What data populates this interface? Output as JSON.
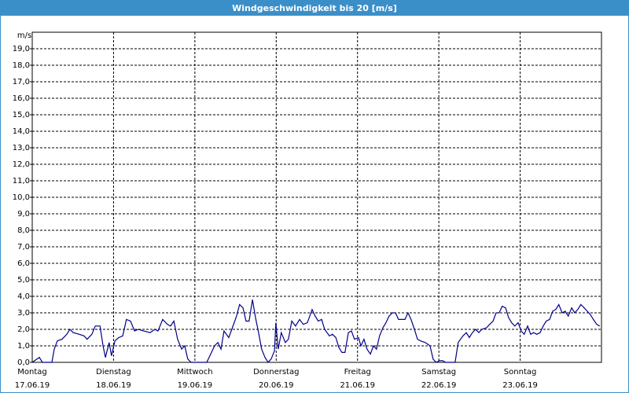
{
  "chart_data": {
    "type": "line",
    "title": "Windgeschwindigkeit bis 20 [m/s]",
    "y_label": "m/s",
    "color": "#00008b",
    "grid": true,
    "xlim": [
      0,
      168
    ],
    "ylim": [
      0,
      20
    ],
    "xticks": [
      {
        "value": 0,
        "label": "Montag"
      },
      {
        "value": 24,
        "label": "Dienstag"
      },
      {
        "value": 48,
        "label": "Mittwoch"
      },
      {
        "value": 72,
        "label": "Donnerstag"
      },
      {
        "value": 96,
        "label": "Freitag"
      },
      {
        "value": 120,
        "label": "Samstag"
      },
      {
        "value": 144,
        "label": "Sonntag"
      }
    ],
    "xtick_dates": [
      "17.06.19",
      "18.06.19",
      "19.06.19",
      "20.06.19",
      "21.06.19",
      "22.06.19",
      "23.06.19"
    ],
    "yticks": [
      {
        "value": 0,
        "label": "0,0"
      },
      {
        "value": 1,
        "label": "1,0"
      },
      {
        "value": 2,
        "label": "2,0"
      },
      {
        "value": 3,
        "label": "3,0"
      },
      {
        "value": 4,
        "label": "4,0"
      },
      {
        "value": 5,
        "label": "5,0"
      },
      {
        "value": 6,
        "label": "6,0"
      },
      {
        "value": 7,
        "label": "7,0"
      },
      {
        "value": 8,
        "label": "8,0"
      },
      {
        "value": 9,
        "label": "9,0"
      },
      {
        "value": 10,
        "label": "10,0"
      },
      {
        "value": 11,
        "label": "11,0"
      },
      {
        "value": 12,
        "label": "12,0"
      },
      {
        "value": 13,
        "label": "13,0"
      },
      {
        "value": 14,
        "label": "14,0"
      },
      {
        "value": 15,
        "label": "15,0"
      },
      {
        "value": 16,
        "label": "16,0"
      },
      {
        "value": 17,
        "label": "17,0"
      },
      {
        "value": 18,
        "label": "18,0"
      },
      {
        "value": 19,
        "label": "19,0"
      }
    ],
    "x": [
      0,
      1.4,
      2.1,
      3.0,
      5.8,
      6.5,
      7.4,
      8.8,
      10.2,
      11.1,
      12.1,
      13.9,
      15.3,
      16.2,
      17.6,
      18.6,
      20.0,
      20.9,
      21.6,
      22.7,
      23.4,
      24.4,
      25.5,
      26.7,
      27.8,
      29.0,
      30.2,
      31.3,
      32.9,
      34.8,
      36.2,
      37.1,
      38.5,
      39.9,
      40.8,
      41.8,
      42.9,
      44.1,
      45.0,
      45.9,
      46.9,
      48.7,
      51.5,
      52.9,
      53.8,
      54.8,
      55.7,
      56.6,
      58.0,
      58.9,
      60.3,
      61.2,
      62.2,
      63.1,
      64.0,
      65.0,
      65.9,
      66.8,
      67.7,
      68.7,
      69.6,
      70.5,
      71.5,
      71.9,
      72.6,
      73.5,
      74.7,
      75.6,
      76.6,
      77.7,
      78.9,
      80.0,
      81.2,
      82.6,
      83.5,
      84.4,
      85.4,
      86.3,
      87.7,
      88.6,
      89.6,
      90.5,
      91.4,
      92.3,
      93.3,
      94.2,
      95.1,
      96.3,
      97.0,
      97.9,
      98.8,
      99.8,
      100.7,
      101.6,
      102.5,
      103.5,
      104.4,
      105.3,
      106.3,
      107.2,
      108.1,
      109.0,
      110.0,
      110.9,
      111.8,
      112.8,
      113.7,
      114.6,
      116.0,
      117.4,
      118.3,
      119.2,
      120.2,
      121.1,
      122.0,
      124.1,
      124.8,
      125.7,
      127.1,
      128.1,
      129.0,
      129.9,
      130.8,
      131.8,
      132.7,
      134.1,
      135.0,
      136.0,
      136.9,
      137.8,
      138.7,
      139.7,
      140.6,
      141.5,
      142.4,
      143.4,
      144.3,
      145.2,
      146.2,
      147.1,
      148.0,
      148.9,
      149.9,
      150.8,
      151.7,
      152.7,
      153.6,
      154.5,
      155.4,
      156.4,
      157.3,
      158.2,
      159.2,
      160.1,
      161.0,
      161.9,
      162.9,
      163.8,
      164.7,
      165.6,
      166.6,
      167.5
    ],
    "values": [
      0,
      0.2,
      0.3,
      0,
      0,
      0.8,
      1.3,
      1.4,
      1.7,
      2.0,
      1.8,
      1.7,
      1.6,
      1.4,
      1.7,
      2.2,
      2.2,
      1.0,
      0.3,
      1.2,
      0.4,
      1.3,
      1.5,
      1.6,
      2.6,
      2.5,
      1.9,
      2.0,
      1.9,
      1.8,
      2.0,
      1.9,
      2.6,
      2.3,
      2.2,
      2.5,
      1.4,
      0.8,
      1.0,
      0.2,
      0,
      0,
      0,
      0.6,
      1.0,
      1.2,
      0.8,
      1.9,
      1.5,
      2.0,
      2.8,
      3.5,
      3.3,
      2.5,
      2.5,
      3.8,
      2.7,
      1.8,
      0.8,
      0.3,
      0,
      0.2,
      0.7,
      2.4,
      0.8,
      1.8,
      1.2,
      1.4,
      2.5,
      2.2,
      2.6,
      2.3,
      2.4,
      3.2,
      2.8,
      2.5,
      2.6,
      2.0,
      1.6,
      1.7,
      1.5,
      0.9,
      0.6,
      0.6,
      1.8,
      1.9,
      1.4,
      1.5,
      1.0,
      1.4,
      0.8,
      0.5,
      1.0,
      0.8,
      1.6,
      2.1,
      2.4,
      2.8,
      3.0,
      3.0,
      2.6,
      2.6,
      2.6,
      3.0,
      2.6,
      2.0,
      1.4,
      1.3,
      1.2,
      1.0,
      0.2,
      0,
      0.1,
      0.1,
      0,
      0,
      0,
      1.2,
      1.6,
      1.8,
      1.5,
      1.8,
      2.0,
      1.8,
      2.0,
      2.1,
      2.3,
      2.5,
      3.0,
      3.0,
      3.4,
      3.3,
      2.7,
      2.4,
      2.2,
      2.4,
      1.9,
      1.7,
      2.2,
      1.7,
      1.8,
      1.7,
      1.8,
      2.2,
      2.5,
      2.6,
      3.1,
      3.2,
      3.5,
      3.0,
      3.1,
      2.8,
      3.3,
      3.0,
      3.2,
      3.5,
      3.3,
      3.1,
      2.9,
      2.6,
      2.3,
      2.2
    ]
  }
}
